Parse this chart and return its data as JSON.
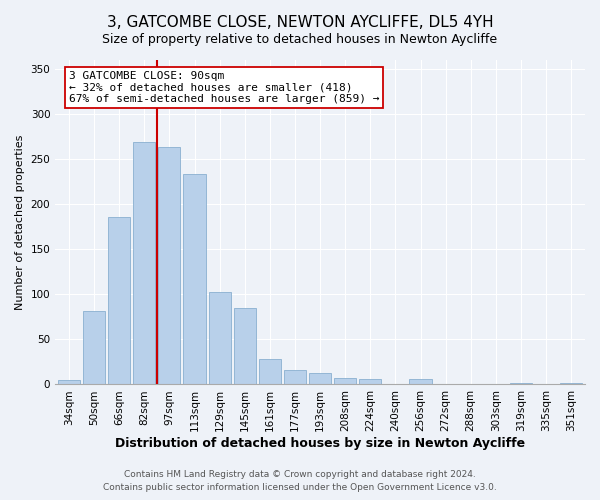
{
  "title": "3, GATCOMBE CLOSE, NEWTON AYCLIFFE, DL5 4YH",
  "subtitle": "Size of property relative to detached houses in Newton Aycliffe",
  "xlabel": "Distribution of detached houses by size in Newton Aycliffe",
  "ylabel": "Number of detached properties",
  "bar_labels": [
    "34sqm",
    "50sqm",
    "66sqm",
    "82sqm",
    "97sqm",
    "113sqm",
    "129sqm",
    "145sqm",
    "161sqm",
    "177sqm",
    "193sqm",
    "208sqm",
    "224sqm",
    "240sqm",
    "256sqm",
    "272sqm",
    "288sqm",
    "303sqm",
    "319sqm",
    "335sqm",
    "351sqm"
  ],
  "bar_heights": [
    5,
    82,
    186,
    269,
    263,
    234,
    103,
    85,
    28,
    16,
    13,
    7,
    6,
    0,
    6,
    0,
    0,
    0,
    2,
    0,
    2
  ],
  "bar_color": "#b8d0ea",
  "bar_edge_color": "#8ab0d0",
  "vline_x_idx": 3.5,
  "vline_color": "#cc0000",
  "annotation_text": "3 GATCOMBE CLOSE: 90sqm\n← 32% of detached houses are smaller (418)\n67% of semi-detached houses are larger (859) →",
  "annotation_box_color": "#ffffff",
  "annotation_box_edge": "#cc0000",
  "ylim": [
    0,
    360
  ],
  "yticks": [
    0,
    50,
    100,
    150,
    200,
    250,
    300,
    350
  ],
  "footer_line1": "Contains HM Land Registry data © Crown copyright and database right 2024.",
  "footer_line2": "Contains public sector information licensed under the Open Government Licence v3.0.",
  "title_fontsize": 11,
  "subtitle_fontsize": 9,
  "xlabel_fontsize": 9,
  "ylabel_fontsize": 8,
  "tick_fontsize": 7.5,
  "annotation_fontsize": 8,
  "footer_fontsize": 6.5,
  "bg_color": "#eef2f8",
  "grid_color": "#ffffff",
  "title_fontweight": "normal"
}
